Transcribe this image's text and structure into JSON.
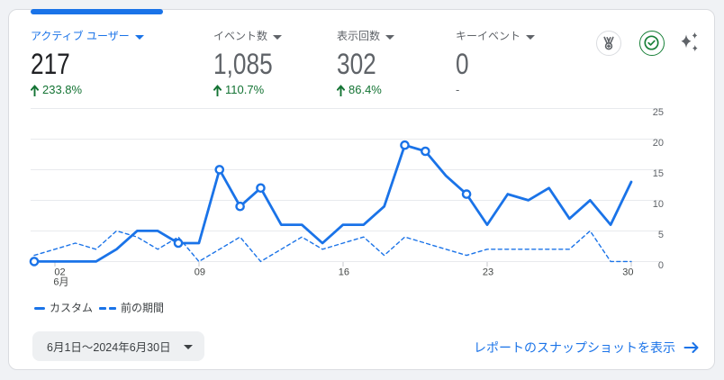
{
  "colors": {
    "accent_blue": "#1a73e8",
    "positive_green": "#188038",
    "text_dark": "#202124",
    "text_gray": "#5f6368",
    "gridline": "#e8eaed",
    "card_border": "#dadce0",
    "page_background": "#f0f2f5"
  },
  "metrics": [
    {
      "label": "アクティブ ユーザー",
      "value": "217",
      "delta": "233.8%",
      "delta_direction": "up",
      "selected": true
    },
    {
      "label": "イベント数",
      "value": "1,085",
      "delta": "110.7%",
      "delta_direction": "up",
      "selected": false
    },
    {
      "label": "表示回数",
      "value": "302",
      "delta": "86.4%",
      "delta_direction": "up",
      "selected": false
    },
    {
      "label": "キーイベント",
      "value": "0",
      "delta": "-",
      "delta_direction": "none",
      "selected": false
    }
  ],
  "delta_up_arrow": "↑",
  "header_icons": [
    {
      "name": "benchmark-medal-icon"
    },
    {
      "name": "data-quality-check-icon"
    },
    {
      "name": "insights-sparkles-icon"
    }
  ],
  "chart_data": {
    "type": "line",
    "x_unit": "day of June 2024",
    "x": [
      1,
      2,
      3,
      4,
      5,
      6,
      7,
      8,
      9,
      10,
      11,
      12,
      13,
      14,
      15,
      16,
      17,
      18,
      19,
      20,
      21,
      22,
      23,
      24,
      25,
      26,
      27,
      28,
      29,
      30
    ],
    "series": [
      {
        "name": "カスタム",
        "style": "solid",
        "color": "#1a73e8",
        "values": [
          0,
          0,
          0,
          0,
          2,
          5,
          5,
          3,
          3,
          15,
          9,
          12,
          6,
          6,
          3,
          6,
          6,
          9,
          19,
          18,
          14,
          11,
          6,
          11,
          10,
          12,
          7,
          10,
          6,
          13
        ],
        "marker_days": [
          1,
          8,
          10,
          11,
          12,
          19,
          20,
          22
        ]
      },
      {
        "name": "前の期間",
        "style": "dashed",
        "color": "#1a73e8",
        "values": [
          1,
          2,
          3,
          2,
          5,
          4,
          2,
          4,
          0,
          2,
          4,
          0,
          2,
          4,
          2,
          3,
          4,
          1,
          4,
          3,
          2,
          1,
          2,
          2,
          2,
          2,
          2,
          5,
          0,
          0
        ],
        "marker_days": []
      }
    ],
    "x_tick_days": [
      2,
      9,
      16,
      23,
      30
    ],
    "x_tick_labels": [
      "02",
      "09",
      "16",
      "23",
      "30"
    ],
    "x_month_label": "6月",
    "y_ticks": [
      0,
      5,
      10,
      15,
      20,
      25
    ],
    "ylim": [
      0,
      25
    ],
    "grid": "horizontal",
    "y_axis_position": "right",
    "legend_position": "bottom-left"
  },
  "legend": [
    {
      "label": "カスタム",
      "swatch": "solid-line"
    },
    {
      "label": "前の期間",
      "swatch": "dashed-line"
    }
  ],
  "footer": {
    "date_range": "6月1日～2024年6月30日",
    "snapshot_link": "レポートのスナップショットを表示",
    "snapshot_arrow": "→"
  }
}
